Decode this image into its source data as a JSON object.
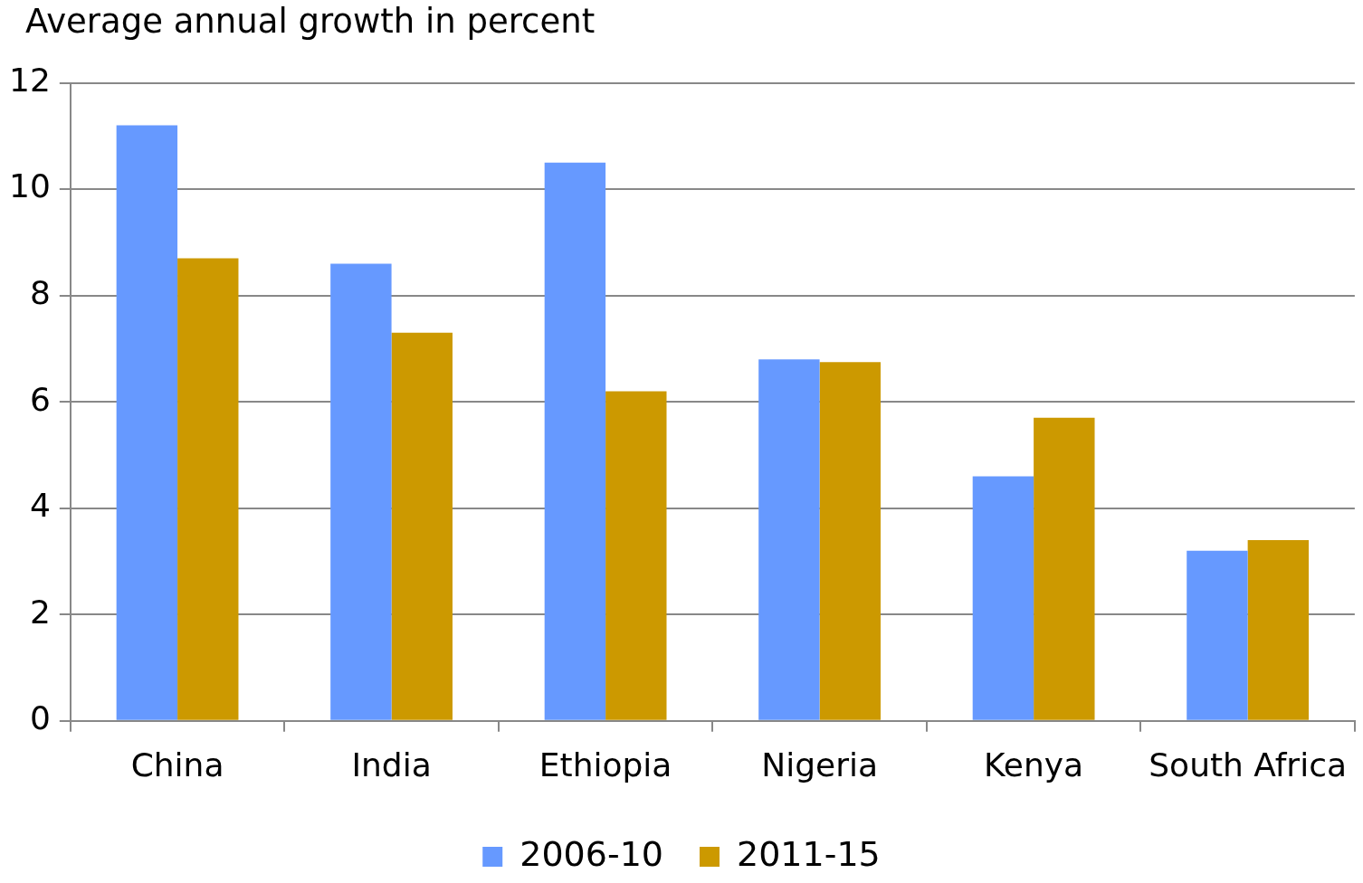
{
  "chart_data": {
    "type": "bar",
    "ylabel": "Average annual growth in percent",
    "categories": [
      "China",
      "India",
      "Ethiopia",
      "Nigeria",
      "Kenya",
      "South Africa"
    ],
    "series": [
      {
        "name": "2006-10",
        "color": "#6699ff",
        "values": [
          11.2,
          8.6,
          10.5,
          6.8,
          4.6,
          3.2
        ]
      },
      {
        "name": "2011-15",
        "color": "#cc9900",
        "values": [
          8.7,
          7.3,
          6.2,
          6.75,
          5.7,
          3.4
        ]
      }
    ],
    "ylim": [
      0,
      12
    ],
    "yticks": [
      0,
      2,
      4,
      6,
      8,
      10,
      12
    ],
    "grid": "y",
    "legend": "bottom"
  }
}
